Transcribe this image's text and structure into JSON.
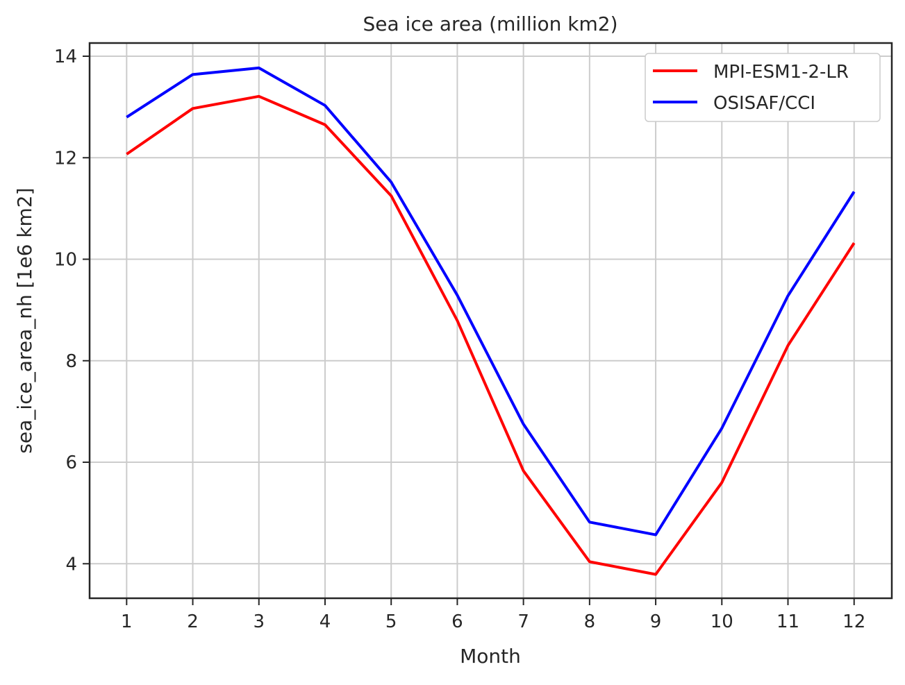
{
  "chart_data": {
    "type": "line",
    "title": "Sea ice area (million km2)",
    "xlabel": "Month",
    "ylabel": "sea_ice_area_nh [1e6 km2]",
    "x": [
      1,
      2,
      3,
      4,
      5,
      6,
      7,
      8,
      9,
      10,
      11,
      12
    ],
    "x_tick_labels": [
      "1",
      "2",
      "3",
      "4",
      "5",
      "6",
      "7",
      "8",
      "9",
      "10",
      "11",
      "12"
    ],
    "y_ticks": [
      4,
      6,
      8,
      10,
      12,
      14
    ],
    "y_tick_labels": [
      "4",
      "6",
      "8",
      "10",
      "12",
      "14"
    ],
    "xlim": [
      0.44,
      12.57
    ],
    "ylim": [
      3.32,
      14.26
    ],
    "grid": true,
    "legend_position": "top-right",
    "series": [
      {
        "name": "MPI-ESM1-2-LR",
        "color": "#ff0000",
        "values": [
          12.07,
          12.97,
          13.21,
          12.65,
          11.25,
          8.79,
          5.83,
          4.04,
          3.79,
          5.6,
          8.3,
          10.32
        ]
      },
      {
        "name": "OSISAF/CCI",
        "color": "#0000ff",
        "values": [
          12.8,
          13.64,
          13.77,
          13.03,
          11.52,
          9.29,
          6.75,
          4.82,
          4.57,
          6.67,
          9.28,
          11.33
        ]
      }
    ]
  }
}
